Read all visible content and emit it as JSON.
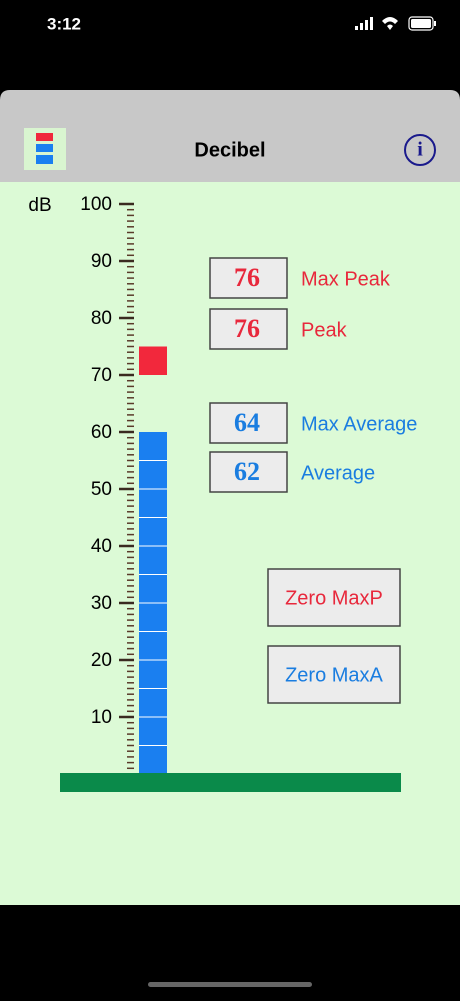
{
  "status_bar": {
    "time": "3:12"
  },
  "header": {
    "title": "Decibel"
  },
  "meter": {
    "unit": "dB",
    "ylim": [
      0,
      100
    ],
    "yticks": [
      10,
      20,
      30,
      40,
      50,
      60,
      70,
      80,
      90,
      100
    ],
    "level": 60,
    "peak": 75,
    "level_color": "#1a7ff0",
    "peak_color": "#f2283c"
  },
  "readouts": [
    {
      "value": "76",
      "label": "Max Peak",
      "color": "#e8283c"
    },
    {
      "value": "76",
      "label": "Peak",
      "color": "#e8283c"
    },
    {
      "value": "64",
      "label": "Max Average",
      "color": "#1a7de0"
    },
    {
      "value": "62",
      "label": "Average",
      "color": "#1a7de0"
    }
  ],
  "buttons": [
    {
      "label": "Zero MaxP",
      "color": "#e8283c"
    },
    {
      "label": "Zero MaxA",
      "color": "#1a7de0"
    }
  ]
}
